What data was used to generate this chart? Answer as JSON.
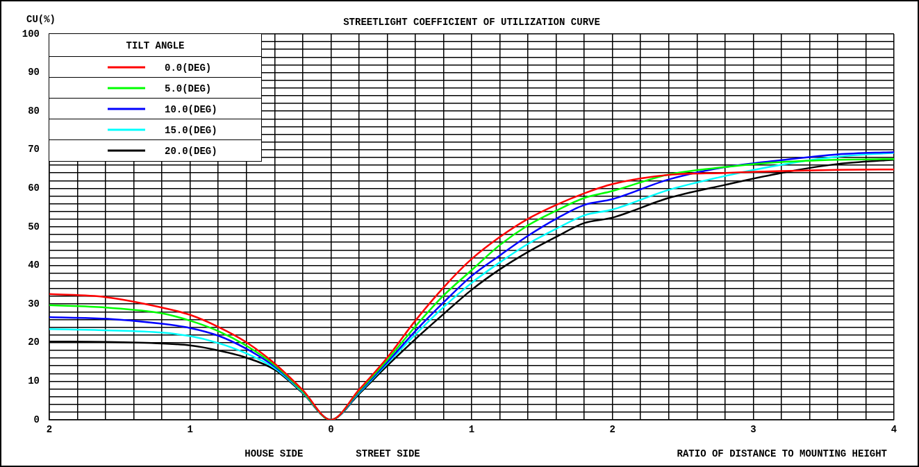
{
  "chart_data": {
    "type": "line",
    "title": "STREETLIGHT COEFFICIENT OF UTILIZATION CURVE",
    "ylabel": "CU(%)",
    "xlabel": "RATIO OF DISTANCE TO MOUNTING HEIGHT",
    "legend_title": "TILT ANGLE",
    "annotations": [
      "HOUSE SIDE",
      "STREET SIDE"
    ],
    "x": [
      -2,
      -1.6,
      -1.2,
      -1,
      -0.8,
      -0.6,
      -0.4,
      -0.2,
      0,
      0.2,
      0.4,
      0.6,
      0.8,
      1,
      1.2,
      1.4,
      1.6,
      1.8,
      2,
      2.4,
      2.8,
      3.2,
      3.6,
      4
    ],
    "series": [
      {
        "name": "0.0(DEG)",
        "color": "#ff0000",
        "values": [
          32.6,
          31.8,
          29.1,
          27.2,
          24.1,
          20.1,
          14.6,
          7.7,
          0,
          7.8,
          16.1,
          25.7,
          34.3,
          41.7,
          47.4,
          52.1,
          55.7,
          58.7,
          61.1,
          63.5,
          64.0,
          64.5,
          64.8,
          64.9
        ]
      },
      {
        "name": "5.0(DEG)",
        "color": "#00ff00",
        "values": [
          29.7,
          29.1,
          27.6,
          25.7,
          23.0,
          19.2,
          14.2,
          7.4,
          0,
          7.5,
          15.5,
          24.2,
          32.2,
          38.8,
          45.3,
          50.4,
          54.2,
          57.5,
          59.3,
          63.6,
          65.5,
          66.8,
          67.4,
          67.6
        ]
      },
      {
        "name": "10.0(DEG)",
        "color": "#0000ff",
        "values": [
          26.6,
          26.2,
          24.9,
          23.8,
          21.8,
          18.4,
          13.8,
          7.3,
          0,
          7.2,
          14.9,
          23.0,
          30.4,
          37.3,
          42.6,
          47.7,
          52.1,
          55.7,
          57.2,
          62.3,
          65.5,
          67.3,
          68.8,
          69.4
        ]
      },
      {
        "name": "15.0(DEG)",
        "color": "#00ffff",
        "values": [
          23.5,
          23.2,
          22.6,
          21.7,
          19.9,
          17.2,
          13.4,
          7.1,
          0,
          7.0,
          14.6,
          22.1,
          29.2,
          35.5,
          40.8,
          45.6,
          49.5,
          53.0,
          54.5,
          59.6,
          63.2,
          66.1,
          68.2,
          69.2
        ]
      },
      {
        "name": "20.0(DEG)",
        "color": "#000000",
        "values": [
          20.3,
          20.2,
          19.8,
          19.3,
          18.0,
          16.1,
          13.0,
          6.9,
          0,
          6.7,
          14.0,
          20.9,
          27.4,
          33.7,
          39.0,
          43.5,
          47.4,
          51.0,
          52.4,
          57.5,
          60.9,
          64.0,
          66.3,
          67.4
        ]
      }
    ],
    "xlim": [
      -2,
      4
    ],
    "xticks": [
      {
        "value": -2,
        "label": "2"
      },
      {
        "value": -1.8,
        "label": null
      },
      {
        "value": -1.6,
        "label": null
      },
      {
        "value": -1.4,
        "label": null
      },
      {
        "value": -1.2,
        "label": null
      },
      {
        "value": -1,
        "label": "1"
      },
      {
        "value": -0.8,
        "label": null
      },
      {
        "value": -0.6,
        "label": null
      },
      {
        "value": -0.4,
        "label": null
      },
      {
        "value": -0.2,
        "label": null
      },
      {
        "value": 0,
        "label": "0"
      },
      {
        "value": 0.2,
        "label": null
      },
      {
        "value": 0.4,
        "label": null
      },
      {
        "value": 0.6,
        "label": null
      },
      {
        "value": 0.8,
        "label": null
      },
      1,
      {
        "value": 1.2,
        "label": null
      },
      {
        "value": 1.4,
        "label": null
      },
      {
        "value": 1.6,
        "label": null
      },
      {
        "value": 1.8,
        "label": null
      },
      2,
      {
        "value": 2.2,
        "label": null
      },
      {
        "value": 2.4,
        "label": null
      },
      {
        "value": 2.6,
        "label": null
      },
      {
        "value": 2.8,
        "label": null
      },
      3,
      {
        "value": 3.2,
        "label": null
      },
      {
        "value": 3.4,
        "label": null
      },
      {
        "value": 3.6,
        "label": null
      },
      {
        "value": 3.8,
        "label": null
      },
      4
    ],
    "ylim": [
      0,
      100
    ],
    "yticks": [
      0,
      {
        "value": 2,
        "label": null
      },
      {
        "value": 4,
        "label": null
      },
      {
        "value": 6,
        "label": null
      },
      {
        "value": 8,
        "label": null
      },
      10,
      {
        "value": 12,
        "label": null
      },
      {
        "value": 14,
        "label": null
      },
      {
        "value": 16,
        "label": null
      },
      {
        "value": 18,
        "label": null
      },
      20,
      {
        "value": 22,
        "label": null
      },
      {
        "value": 24,
        "label": null
      },
      {
        "value": 26,
        "label": null
      },
      {
        "value": 28,
        "label": null
      },
      30,
      {
        "value": 32,
        "label": null
      },
      {
        "value": 34,
        "label": null
      },
      {
        "value": 36,
        "label": null
      },
      {
        "value": 38,
        "label": null
      },
      40,
      {
        "value": 42,
        "label": null
      },
      {
        "value": 44,
        "label": null
      },
      {
        "value": 46,
        "label": null
      },
      {
        "value": 48,
        "label": null
      },
      50,
      {
        "value": 52,
        "label": null
      },
      {
        "value": 54,
        "label": null
      },
      {
        "value": 56,
        "label": null
      },
      {
        "value": 58,
        "label": null
      },
      60,
      {
        "value": 62,
        "label": null
      },
      {
        "value": 64,
        "label": null
      },
      {
        "value": 66,
        "label": null
      },
      {
        "value": 68,
        "label": null
      },
      70,
      {
        "value": 72,
        "label": null
      },
      {
        "value": 74,
        "label": null
      },
      {
        "value": 76,
        "label": null
      },
      {
        "value": 78,
        "label": null
      },
      80,
      {
        "value": 82,
        "label": null
      },
      {
        "value": 84,
        "label": null
      },
      {
        "value": 86,
        "label": null
      },
      {
        "value": 88,
        "label": null
      },
      90,
      {
        "value": 92,
        "label": null
      },
      {
        "value": 94,
        "label": null
      },
      {
        "value": 96,
        "label": null
      },
      {
        "value": 98,
        "label": null
      },
      100
    ],
    "grid": true,
    "legend": "top left",
    "marker": "none",
    "line_style": "solid"
  }
}
